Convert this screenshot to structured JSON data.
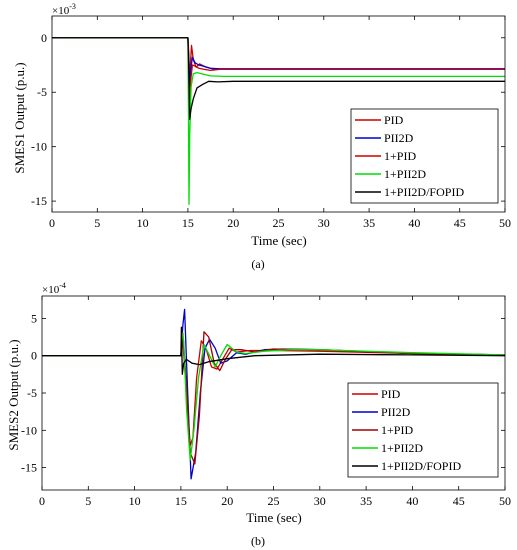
{
  "figure": {
    "captions": [
      "(a)",
      "(b)"
    ]
  },
  "chart_data": [
    {
      "type": "line",
      "panel_label": "(a)",
      "xlabel": "Time (sec)",
      "ylabel": "SMES1 Output (p.u.)",
      "exponent_label": "×10",
      "exponent_power": "-3",
      "xlim": [
        0,
        50
      ],
      "ylim": [
        -16,
        2
      ],
      "xticks": [
        0,
        5,
        10,
        15,
        20,
        25,
        30,
        35,
        40,
        45,
        50
      ],
      "yticks": [
        0,
        -5,
        -10,
        -15
      ],
      "grid": false,
      "legend_position": "lower-right",
      "series": [
        {
          "name": "PID",
          "color": "#cc0000",
          "x": [
            0,
            15,
            15.1,
            15.2,
            15.3,
            15.4,
            15.6,
            15.9,
            16.3,
            17,
            18,
            20,
            50
          ],
          "y": [
            0,
            0,
            -1.5,
            -4,
            -2.2,
            -0.7,
            -2.0,
            -2.7,
            -2.4,
            -2.7,
            -2.9,
            -2.9,
            -2.9
          ]
        },
        {
          "name": "PII2D",
          "color": "#0000cc",
          "x": [
            0,
            15,
            15.1,
            15.2,
            15.3,
            15.5,
            15.8,
            16.2,
            16.7,
            17.5,
            18.5,
            20,
            50
          ],
          "y": [
            0,
            0,
            -2,
            -5,
            -3,
            -1.8,
            -2.3,
            -2.5,
            -2.6,
            -2.8,
            -2.85,
            -2.85,
            -2.85
          ]
        },
        {
          "name": "1+PID",
          "color": "#cc0000",
          "x": [
            0,
            15,
            15.1,
            15.2,
            15.3,
            15.5,
            15.8,
            16.2,
            16.8,
            17.5,
            18.5,
            20,
            50
          ],
          "y": [
            0,
            0,
            -3,
            -7.5,
            -4,
            -2.5,
            -2.6,
            -2.8,
            -2.9,
            -3.0,
            -2.9,
            -2.9,
            -2.9
          ]
        },
        {
          "name": "1+PII2D",
          "color": "#00dd00",
          "x": [
            0,
            15,
            15.05,
            15.12,
            15.2,
            15.35,
            15.6,
            16,
            16.5,
            17.5,
            19,
            21,
            50
          ],
          "y": [
            0,
            0,
            -6,
            -15.3,
            -9,
            -4.5,
            -3.3,
            -3.2,
            -3.3,
            -3.5,
            -3.55,
            -3.55,
            -3.55
          ]
        },
        {
          "name": "1+PII2D/FOPID",
          "color": "#000000",
          "x": [
            0,
            15,
            15.1,
            15.2,
            15.35,
            15.6,
            16,
            16.6,
            17.3,
            18.3,
            20,
            22,
            50
          ],
          "y": [
            0,
            0,
            -3,
            -7.5,
            -6.5,
            -5.6,
            -4.6,
            -4.3,
            -4.0,
            -4.05,
            -4.0,
            -4.0,
            -4.0
          ]
        }
      ]
    },
    {
      "type": "line",
      "panel_label": "(b)",
      "xlabel": "Time (sec)",
      "ylabel": "SMES2 Output (p.u.)",
      "exponent_label": "×10",
      "exponent_power": "-4",
      "xlim": [
        0,
        50
      ],
      "ylim": [
        -18,
        8
      ],
      "xticks": [
        0,
        5,
        10,
        15,
        20,
        25,
        30,
        35,
        40,
        45,
        50
      ],
      "yticks": [
        5,
        0,
        -5,
        -10,
        -15
      ],
      "grid": false,
      "legend_position": "lower-right",
      "series": [
        {
          "name": "PID",
          "color": "#cc0000",
          "x": [
            0,
            15,
            15.2,
            15.6,
            16,
            16.3,
            16.7,
            17.2,
            17.7,
            18.3,
            18.9,
            19.5,
            20.2,
            21,
            22.5,
            25,
            30,
            40,
            50
          ],
          "y": [
            0,
            0,
            2,
            -5,
            -12,
            -11,
            -3,
            2,
            1,
            -1.5,
            -1.8,
            -0.5,
            1,
            0.5,
            0.7,
            0.7,
            0.6,
            0.3,
            0.1
          ]
        },
        {
          "name": "PII2D",
          "color": "#0000cc",
          "x": [
            0,
            15,
            15.2,
            15.4,
            15.7,
            16.1,
            16.6,
            17.1,
            17.6,
            18.1,
            18.7,
            19.3,
            20,
            21,
            22,
            24,
            26,
            30,
            40,
            50
          ],
          "y": [
            0,
            0,
            4,
            6.2,
            -4,
            -16.5,
            -13,
            -5,
            1,
            2.2,
            1,
            -1,
            -0.7,
            0.4,
            0.2,
            0.8,
            0.9,
            0.8,
            0.3,
            0.1
          ]
        },
        {
          "name": "1+PID",
          "color": "#a00000",
          "x": [
            0,
            15,
            15.2,
            15.6,
            16,
            16.5,
            17,
            17.5,
            18,
            18.6,
            19.2,
            19.8,
            20.5,
            21.5,
            23,
            25,
            30,
            40,
            50
          ],
          "y": [
            0,
            0,
            3,
            -4,
            -13,
            -14.5,
            -8,
            3.2,
            2.5,
            -1,
            -2,
            -0.5,
            0.8,
            0.8,
            0.5,
            0.9,
            0.8,
            0.3,
            0.1
          ]
        },
        {
          "name": "1+PII2D",
          "color": "#00dd00",
          "x": [
            0,
            15,
            15.15,
            15.3,
            15.6,
            16,
            16.4,
            16.9,
            17.5,
            18.1,
            18.7,
            19.3,
            20,
            21,
            22,
            24,
            27,
            30,
            40,
            50
          ],
          "y": [
            0,
            0,
            3,
            2,
            -7,
            -14,
            -10,
            -3,
            1.5,
            0,
            -1.5,
            0,
            1.5,
            0.5,
            0.3,
            0.6,
            0.8,
            0.8,
            0.4,
            0.1
          ]
        },
        {
          "name": "1+PII2D/FOPID",
          "color": "#000000",
          "x": [
            0,
            15,
            15.05,
            15.15,
            15.3,
            15.6,
            16.2,
            17,
            18,
            20,
            23,
            30,
            40,
            50
          ],
          "y": [
            0,
            0,
            3.8,
            -2.5,
            -1,
            -0.5,
            -1,
            -1.2,
            -0.8,
            -0.4,
            0,
            0.2,
            0.1,
            0
          ]
        }
      ]
    }
  ]
}
